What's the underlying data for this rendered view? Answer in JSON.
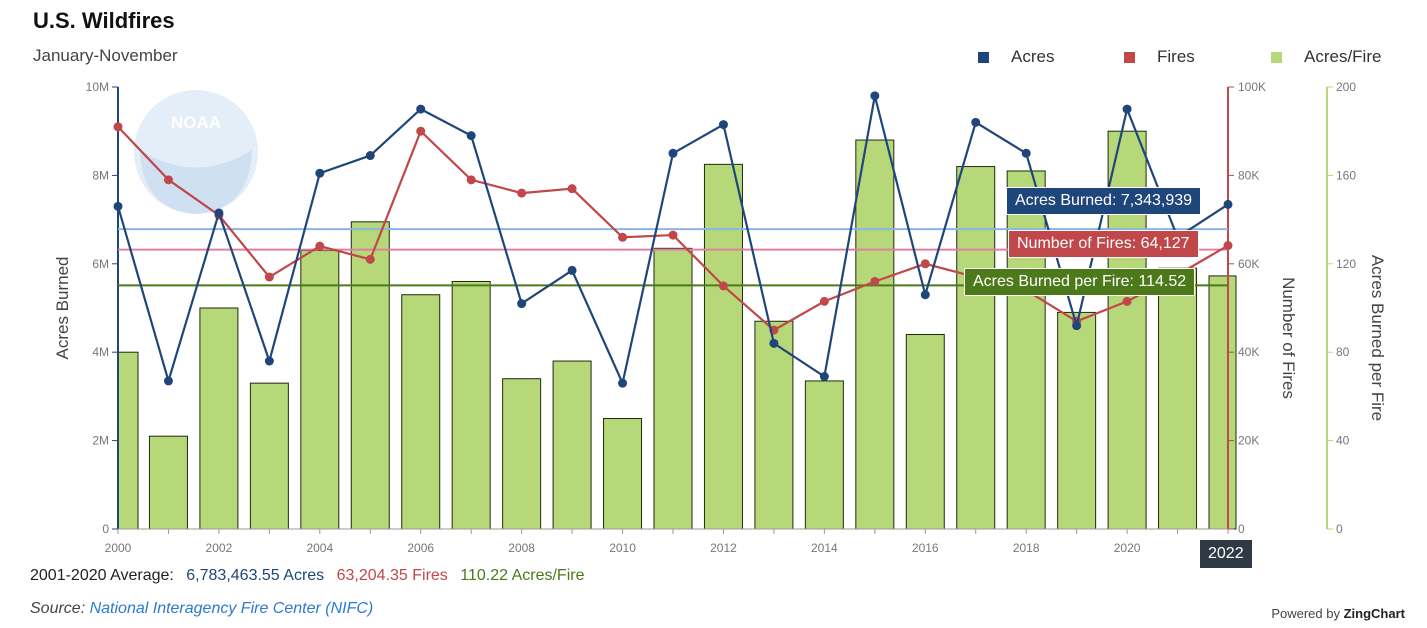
{
  "header": {
    "title": "U.S. Wildfires",
    "subtitle": "January-November"
  },
  "legend": {
    "acres": "Acres",
    "fires": "Fires",
    "ratio": "Acres/Fire"
  },
  "colors": {
    "acres": "#1f467a",
    "fires": "#c0474a",
    "ratio_fill": "#b6d879",
    "avg_acres": "#8ab4e6",
    "avg_fires": "#e07fa3",
    "avg_ratio": "#4c7a1a",
    "ratio_axis": "#b6d879",
    "tip_acres": "#1f467a",
    "tip_fires": "#c0474a",
    "tip_ratio": "#4c7a1a"
  },
  "averages": {
    "label": "2001-2020 Average:",
    "acres_text": "6,783,463.55 Acres",
    "fires_text": "63,204.35 Fires",
    "ratio_text": "110.22 Acres/Fire",
    "acres": 6783463.55,
    "fires": 63204.35,
    "ratio": 110.22
  },
  "tooltips": {
    "acres": "Acres Burned: 7,343,939",
    "fires": "Number of Fires: 64,127",
    "ratio": "Acres Burned per Fire: 114.52",
    "year": "2022"
  },
  "footer": {
    "source_prefix": "Source:",
    "source_link": "National Interagency Fire Center (NIFC)",
    "powered_prefix": "Powered by",
    "powered_brand": "ZingChart"
  },
  "chart_data": {
    "type": "bar",
    "x": [
      2000,
      2001,
      2002,
      2003,
      2004,
      2005,
      2006,
      2007,
      2008,
      2009,
      2010,
      2011,
      2012,
      2013,
      2014,
      2015,
      2016,
      2017,
      2018,
      2019,
      2020,
      2021,
      2022
    ],
    "x_tick_labels": [
      "2000",
      "2002",
      "2004",
      "2006",
      "2008",
      "2010",
      "2012",
      "2014",
      "2016",
      "2018",
      "2020"
    ],
    "series": [
      {
        "name": "Acres",
        "type": "line",
        "axis": "left",
        "values": [
          7300000,
          3350000,
          7150000,
          3800000,
          8050000,
          8450000,
          9500000,
          8900000,
          5100000,
          5850000,
          3300000,
          8500000,
          9150000,
          4200000,
          3450000,
          9800000,
          5300000,
          9200000,
          8500000,
          4600000,
          9500000,
          6600000,
          7343939
        ]
      },
      {
        "name": "Fires",
        "type": "line",
        "axis": "right",
        "values": [
          91000,
          79000,
          71000,
          57000,
          64000,
          61000,
          90000,
          79000,
          76000,
          77000,
          66000,
          66500,
          55000,
          45000,
          51500,
          56000,
          60000,
          57000,
          54000,
          47000,
          51500,
          57500,
          64127
        ]
      },
      {
        "name": "Acres/Fire",
        "type": "bar",
        "axis": "right2",
        "values": [
          80,
          42,
          100,
          66,
          126,
          139,
          106,
          112,
          68,
          76,
          50,
          127,
          165,
          94,
          67,
          176,
          88,
          164,
          162,
          98,
          180,
          118,
          114.52
        ]
      }
    ],
    "axes": {
      "left": {
        "label": "Acres Burned",
        "min": 0,
        "max": 10000000,
        "ticks": [
          0,
          2000000,
          4000000,
          6000000,
          8000000,
          10000000
        ],
        "tick_labels": [
          "0",
          "2M",
          "4M",
          "6M",
          "8M",
          "10M"
        ]
      },
      "right": {
        "label": "Number of Fires",
        "min": 0,
        "max": 100000,
        "ticks": [
          0,
          20000,
          40000,
          60000,
          80000,
          100000
        ],
        "tick_labels": [
          "0",
          "20K",
          "40K",
          "60K",
          "80K",
          "100K"
        ]
      },
      "right2": {
        "label": "Acres Burned per Fire",
        "min": 0,
        "max": 200,
        "ticks": [
          0,
          40,
          80,
          120,
          160,
          200
        ],
        "tick_labels": [
          "0",
          "40",
          "80",
          "120",
          "160",
          "200"
        ]
      }
    },
    "grid": false,
    "legend_position": "top-right"
  }
}
